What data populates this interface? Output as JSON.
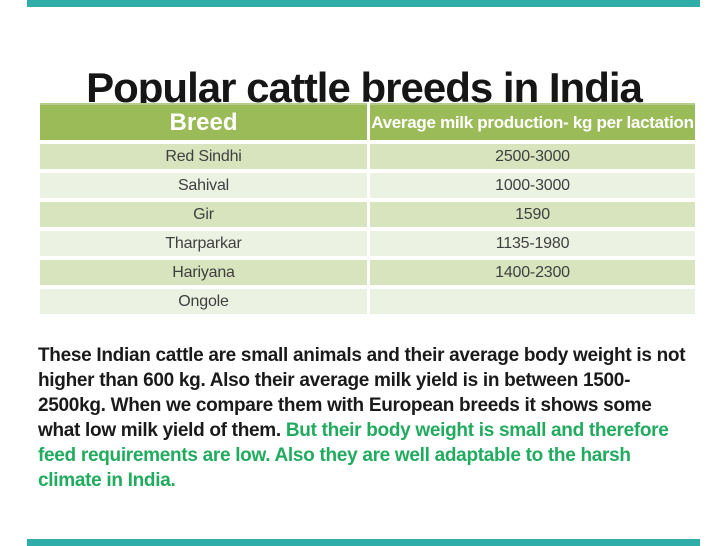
{
  "slide": {
    "title": "Popular cattle breeds in India",
    "accent_bar_color": "#2FAEA9",
    "background_color": "#ffffff"
  },
  "table": {
    "header": {
      "col1": "Breed",
      "col2": "Average milk production- kg per lactation"
    },
    "rows": [
      {
        "breed": "Red Sindhi",
        "production": "2500-3000"
      },
      {
        "breed": "Sahival",
        "production": "1000-3000"
      },
      {
        "breed": "Gir",
        "production": "1590"
      },
      {
        "breed": "Tharparkar",
        "production": "1135-1980"
      },
      {
        "breed": "Hariyana",
        "production": "1400-2300"
      },
      {
        "breed": "Ongole",
        "production": ""
      }
    ],
    "colors": {
      "header_bg": "#9BBB59",
      "header_text": "#ffffff",
      "band_dark": "#D7E4BE",
      "band_light": "#ECF2E2",
      "row_text": "#3F3F3F"
    }
  },
  "paragraph": {
    "text_color": "#1A1A1A",
    "highlight_color": "#21AB5F",
    "lines": [
      {
        "black": "These Indian cattle are small animals and their average body weight is not",
        "green": ""
      },
      {
        "black": "higher than 600 kg. Also their average milk yield is in between 1500-",
        "green": ""
      },
      {
        "black": "2500kg. When we compare them with European breeds it shows some",
        "green": ""
      },
      {
        "black": "what low milk yield of them. ",
        "green": "But their body weight is small and therefore"
      },
      {
        "black": "",
        "green": "feed requirements are low. Also they are well adaptable to the harsh"
      },
      {
        "black": "",
        "green": "climate in India."
      }
    ]
  }
}
